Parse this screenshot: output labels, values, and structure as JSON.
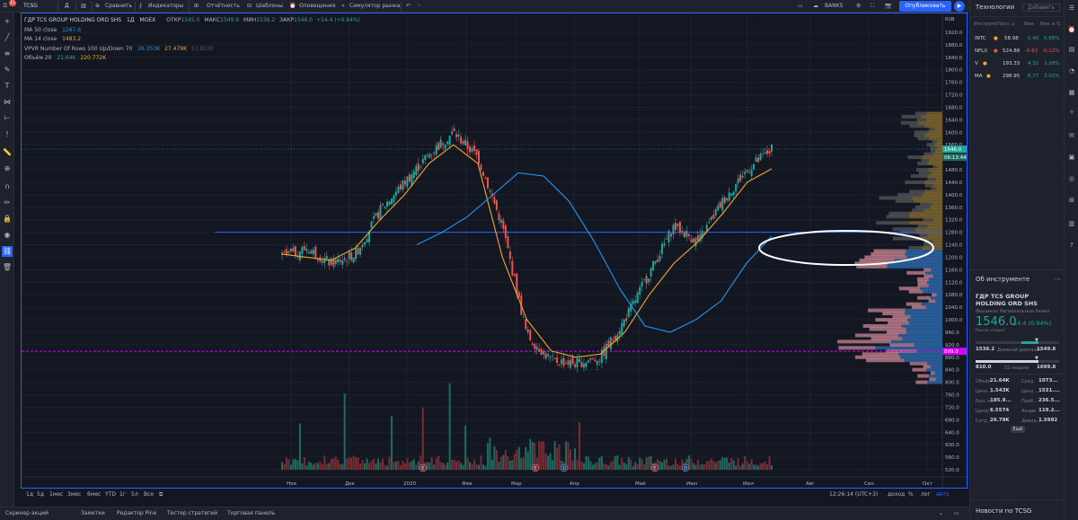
{
  "topbar": {
    "symbol": "TCSG",
    "interval": "Д",
    "compare": "Сравнить",
    "indicators": "Индикаторы",
    "reports": "Отчётность",
    "templates": "Шаблоны",
    "alerts": "Оповещения",
    "simulator": "Симулятор рынка",
    "banks": "BANKS",
    "publish": "Опубликовать",
    "notif_count": "11"
  },
  "legend": {
    "title": "ГДР TCS GROUP HOLDING ORD SHS",
    "interval": "1Д",
    "exchange": "MOEX",
    "open_label": "ОТКР",
    "open": "1545.0",
    "high_label": "МАКС",
    "high": "1549.8",
    "low_label": "МИН",
    "low": "1536.2",
    "close_label": "ЗАКР",
    "close": "1546.0",
    "change": "+14.4 (+0.94%)",
    "ma50_label": "MA 50 close",
    "ma50_value": "1267.6",
    "ma14_label": "MA 14 close",
    "ma14_value": "1483.2",
    "vpvr_label": "VPVR Number Of Rows 100 Up/Down 70",
    "vpvr_v1": "26.353K",
    "vpvr_v2": "27.479K",
    "vpvr_v3": "53.832K",
    "vol_label": "Объём 20",
    "vol_v1": "21.64K",
    "vol_v2": "220.772K"
  },
  "axis": {
    "currency": "RUB",
    "price_ticks": [
      "1920.0",
      "1880.0",
      "1840.0",
      "1800.0",
      "1760.0",
      "1720.0",
      "1680.0",
      "1640.0",
      "1600.0",
      "1560.0",
      "1520.0",
      "1480.0",
      "1440.0",
      "1400.0",
      "1360.0",
      "1320.0",
      "1280.0",
      "1240.0",
      "1200.0",
      "1160.0",
      "1120.0",
      "1080.0",
      "1040.0",
      "1000.0",
      "960.0",
      "920.0",
      "880.0",
      "840.0",
      "800.0",
      "760.0",
      "720.0",
      "680.0",
      "640.0",
      "600.0",
      "560.0",
      "520.0"
    ],
    "time_ticks": [
      "Ноя",
      "Дек",
      "2020",
      "Фев",
      "Мар",
      "Апр",
      "Май",
      "Июн",
      "Июл",
      "Авг",
      "Сен",
      "Окт"
    ],
    "price_label_current": "1546.0",
    "price_label_countdown": "06:13:44",
    "price_label_pink": "899.0"
  },
  "chart_data": {
    "type": "candlestick",
    "title": "ГДР TCS GROUP HOLDING ORD SHS",
    "ylim": [
      520,
      1940
    ],
    "x": [
      "Ноя",
      "Дек",
      "2020",
      "Фев",
      "Мар",
      "Апр",
      "Май",
      "Июн",
      "Июл"
    ],
    "close_path": [
      1200,
      1230,
      1180,
      1210,
      1350,
      1440,
      1530,
      1600,
      1520,
      1300,
      950,
      870,
      860,
      880,
      1000,
      1150,
      1300,
      1250,
      1380,
      1480,
      1546
    ],
    "ma14_path": [
      1210,
      1200,
      1190,
      1230,
      1320,
      1400,
      1500,
      1560,
      1500,
      1200,
      1000,
      900,
      880,
      890,
      960,
      1080,
      1180,
      1250,
      1340,
      1440,
      1483
    ],
    "ma50_path": [
      1240,
      1280,
      1330,
      1400,
      1470,
      1460,
      1380,
      1250,
      1100,
      980,
      960,
      1000,
      1060,
      1180,
      1267
    ],
    "hline_blue": 1280,
    "hline_pink": 899,
    "current_price": 1546.0
  },
  "bottom_toolbar": {
    "ranges": [
      "1д",
      "5д",
      "1мес",
      "3мес",
      "6мес",
      "YTD",
      "1г",
      "5л",
      "Все"
    ],
    "time": "12:26:14 (UTC+3)",
    "options": [
      "доход",
      "%",
      "лог",
      "авто"
    ]
  },
  "bottom_panel": {
    "tabs": [
      "Скринер акций",
      "Заметки",
      "Редактор Pine",
      "Тестер стратегий",
      "Торговая панель"
    ]
  },
  "watchlist": {
    "title": "Технологии",
    "add_button": "Добавить",
    "headers": [
      "Инструме",
      "Посл. ц",
      "Изм.",
      "Изм. в %"
    ],
    "rows": [
      {
        "symbol": "INTC",
        "dot": "#f5a623",
        "last": "58.98",
        "chg": "0.40",
        "chgp": "0.68%",
        "dir": "up"
      },
      {
        "symbol": "NFLX",
        "dot": "#ef5350",
        "last": "524.88",
        "chg": "-0.62",
        "chgp": "-0.12%",
        "dir": "down"
      },
      {
        "symbol": "V",
        "dot": "#f5a623",
        "last": "193.33",
        "chg": "4.31",
        "chgp": "2.28%",
        "dir": "up"
      },
      {
        "symbol": "MA",
        "dot": "#f5a623",
        "last": "298.95",
        "chg": "8.77",
        "chgp": "3.02%",
        "dir": "up"
      }
    ]
  },
  "instrument": {
    "section_title": "Об инструменте",
    "name": "ГДР TCS GROUP HOLDING ORD SHS",
    "sector": "Финансы: Региональные банки",
    "price_main": "1546.0",
    "change": "14.4 (0.94%)",
    "market_status": "Рынок открыт",
    "day_low": "1536.2",
    "day_range_label": "Дневной диапазон",
    "day_high": "1549.8",
    "w52_low": "810.0",
    "w52_label": "52 недели",
    "w52_high": "1699.8",
    "stats": [
      {
        "l1": "Объём",
        "v1": "21.64K",
        "l2": "Сред.",
        "v2": "1073..."
      },
      {
        "l1": "Цена ...",
        "v1": "1.543K",
        "l2": "Цена ...",
        "v2": "1531...."
      },
      {
        "l1": "Рын. к...",
        "v1": "185.9...",
        "l2": "Приб...",
        "v2": "236.5..."
      },
      {
        "l1": "Цена/...",
        "v1": "6.5574",
        "l2": "Акции",
        "v2": "119.2..."
      },
      {
        "l1": "Сотр...",
        "v1": "26.78K",
        "l2": "Дивид...",
        "v2": "1.5982"
      }
    ],
    "more_button": "Ещё"
  },
  "news": {
    "title": "Новости по TCSG"
  }
}
